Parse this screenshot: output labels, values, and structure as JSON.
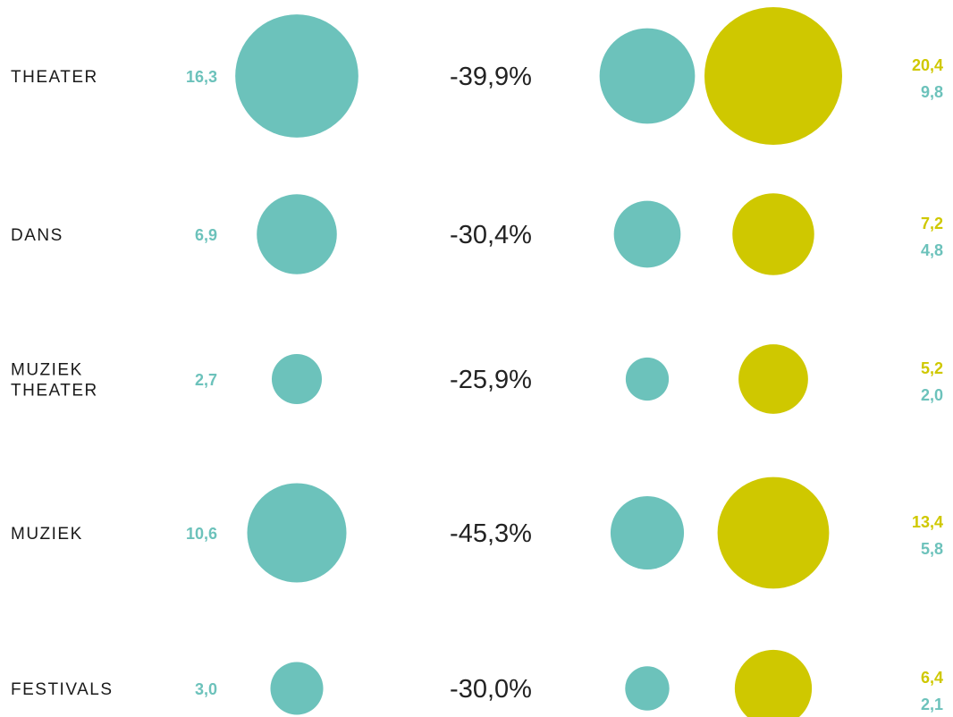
{
  "colors": {
    "teal": "#6cc2bb",
    "yellow": "#cfc800"
  },
  "chart_data": {
    "type": "bubble",
    "categories": [
      "THEATER",
      "DANS",
      "MUZIEK THEATER",
      "MUZIEK",
      "FESTIVALS"
    ],
    "category_label_lines": [
      [
        "THEATER"
      ],
      [
        "DANS"
      ],
      [
        "MUZIEK",
        "THEATER"
      ],
      [
        "MUZIEK"
      ],
      [
        "FESTIVALS"
      ]
    ],
    "series": [
      {
        "color": "teal",
        "values": [
          16.3,
          6.9,
          2.7,
          10.6,
          3.0
        ],
        "labels": [
          "16,3",
          "6,9",
          "2,7",
          "10,6",
          "3,0"
        ]
      },
      {
        "color": "teal",
        "values": [
          9.8,
          4.8,
          2.0,
          5.8,
          2.1
        ],
        "labels": [
          "9,8",
          "4,8",
          "2,0",
          "5,8",
          "2,1"
        ]
      },
      {
        "color": "yellow",
        "values": [
          20.4,
          7.2,
          5.2,
          13.4,
          6.4
        ],
        "labels": [
          "20,4",
          "7,2",
          "5,2",
          "13,4",
          "6,4"
        ]
      }
    ],
    "change_labels": [
      "-39,9%",
      "-30,4%",
      "-25,9%",
      "-45,3%",
      "-30,0%"
    ]
  }
}
